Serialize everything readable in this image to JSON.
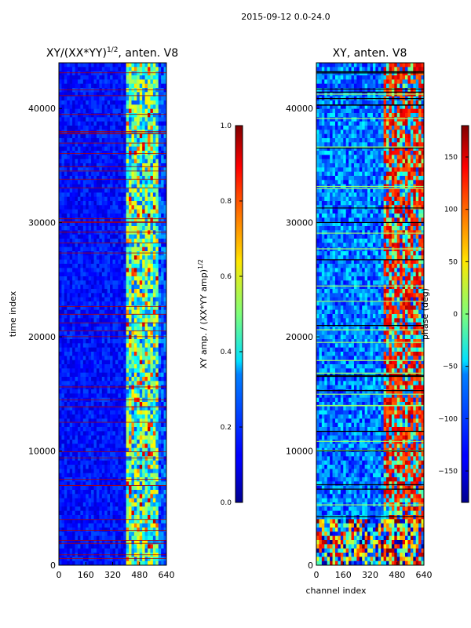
{
  "figure": {
    "suptitle": "2015-09-12 0.0-24.0"
  },
  "chart_data": [
    {
      "type": "heatmap",
      "title_main": "XY/(XX*YY)",
      "title_sup": "1/2",
      "title_rest": ", anten. V8",
      "xlabel": "",
      "ylabel": "time index",
      "xlim": [
        0,
        640
      ],
      "ylim": [
        0,
        44000
      ],
      "xticks": [
        "0",
        "160",
        "320",
        "480",
        "640"
      ],
      "yticks": [
        "0",
        "10000",
        "20000",
        "30000",
        "40000"
      ],
      "ytick_values": [
        0,
        10000,
        20000,
        30000,
        40000
      ],
      "colorbar": {
        "label_main": "XY amp. / (XX*YY amp)",
        "label_sup": "1/2",
        "range": [
          0.0,
          1.0
        ],
        "ticks": [
          "0.0",
          "0.2",
          "0.4",
          "0.6",
          "0.8",
          "1.0"
        ],
        "tick_values": [
          0.0,
          0.2,
          0.4,
          0.6,
          0.8,
          1.0
        ],
        "colormap": "jet"
      }
    },
    {
      "type": "heatmap",
      "title_main": "XY, anten. V8",
      "xlabel": "channel index",
      "ylabel": "",
      "xlim": [
        0,
        640
      ],
      "ylim": [
        0,
        44000
      ],
      "xticks": [
        "0",
        "160",
        "320",
        "480",
        "640"
      ],
      "yticks": [
        "0",
        "10000",
        "20000",
        "30000",
        "40000"
      ],
      "ytick_values": [
        0,
        10000,
        20000,
        30000,
        40000
      ],
      "colorbar": {
        "label_main": "phase (deg)",
        "range": [
          -180,
          180
        ],
        "ticks": [
          "−150",
          "−100",
          "−50",
          "0",
          "50",
          "100",
          "150"
        ],
        "tick_values": [
          -150,
          -100,
          -50,
          0,
          50,
          100,
          150
        ],
        "colormap": "jet"
      }
    }
  ]
}
